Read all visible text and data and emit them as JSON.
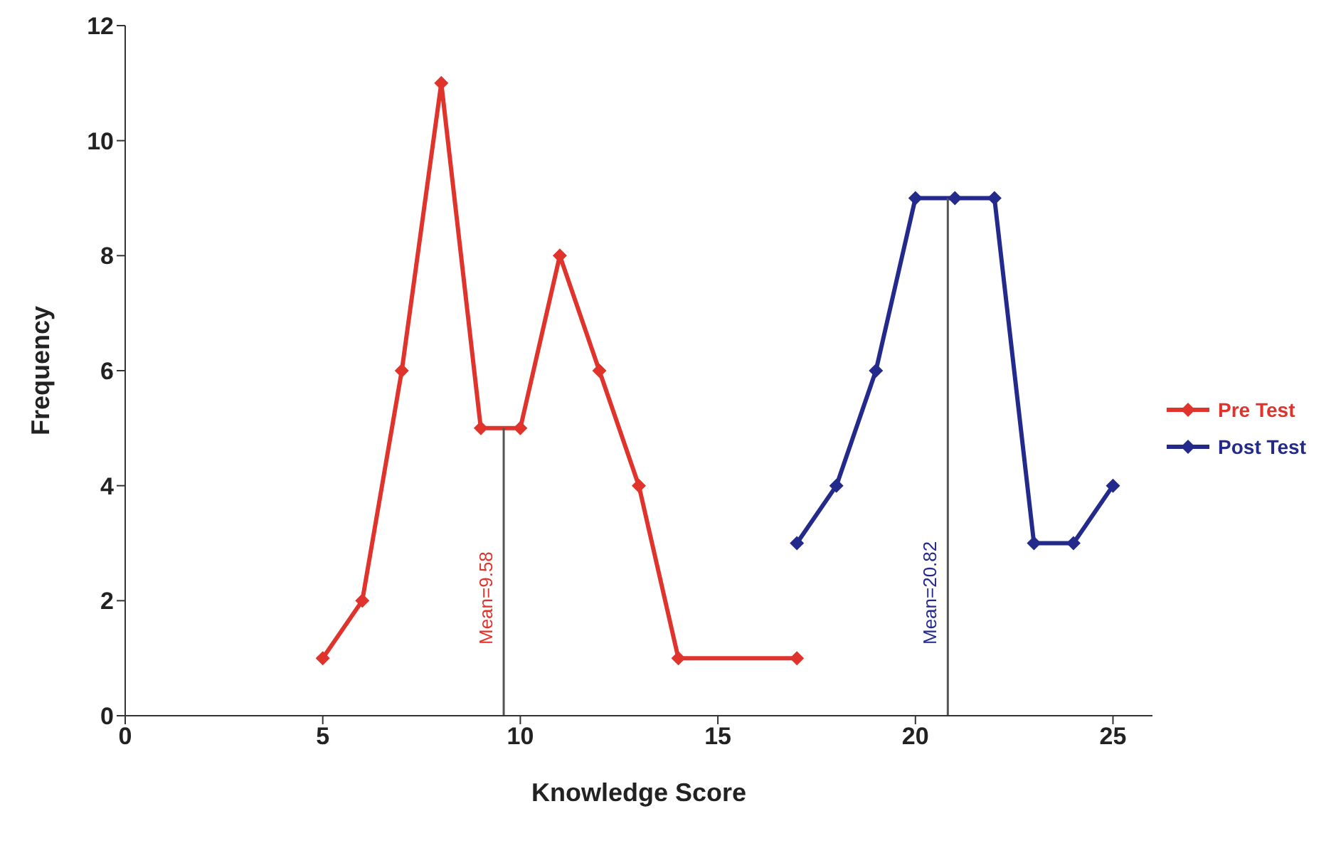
{
  "chart_data": {
    "type": "line",
    "xlabel": "Knowledge Score",
    "ylabel": "Frequency",
    "xlim": [
      0,
      26
    ],
    "xticks": [
      0,
      5,
      10,
      15,
      20,
      25
    ],
    "ylim": [
      0,
      12
    ],
    "yticks": [
      0,
      2,
      4,
      6,
      8,
      10,
      12
    ],
    "grid": false,
    "legend": "right",
    "marker": "diamond",
    "line_style": "solid",
    "series": [
      {
        "name": "Pre Test",
        "color": "#e0332c",
        "x": [
          5,
          6,
          7,
          8,
          9,
          10,
          11,
          12,
          13,
          14,
          17
        ],
        "values": [
          1,
          2,
          6,
          11,
          5,
          5,
          8,
          6,
          4,
          1,
          1
        ]
      },
      {
        "name": "Post Test",
        "color": "#232a8c",
        "x": [
          17,
          18,
          19,
          20,
          21,
          22,
          23,
          24,
          25
        ],
        "values": [
          3,
          4,
          6,
          9,
          9,
          9,
          3,
          3,
          4
        ]
      }
    ],
    "ref_lines": [
      {
        "axis": "x",
        "value": 9.58,
        "label": "Mean=9.58",
        "color": "#555555"
      },
      {
        "axis": "x",
        "value": 20.82,
        "label": "Mean=20.82",
        "color": "#555555"
      }
    ]
  }
}
